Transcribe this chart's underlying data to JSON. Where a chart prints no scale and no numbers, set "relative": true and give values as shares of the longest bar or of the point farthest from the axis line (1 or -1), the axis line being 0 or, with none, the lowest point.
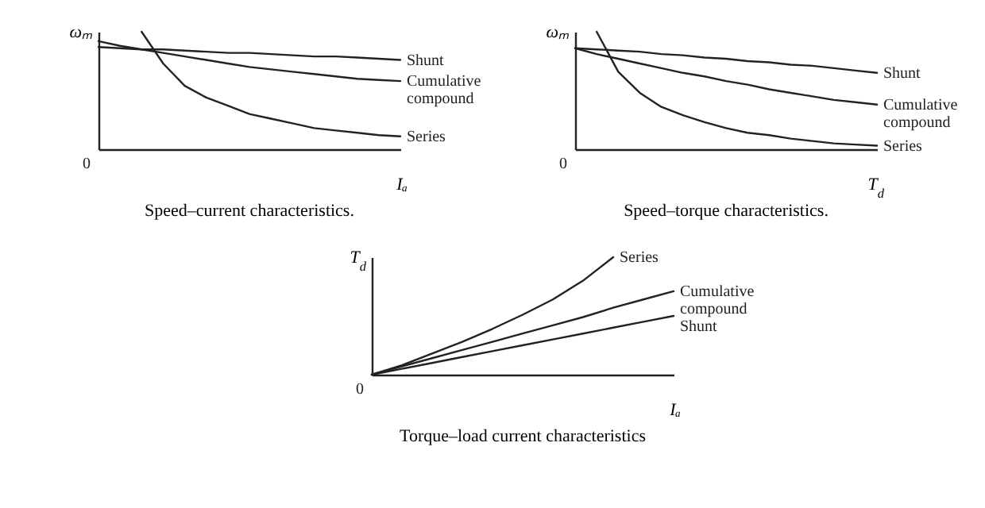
{
  "chart_data": [
    {
      "type": "line",
      "title": "Speed–current characteristics.",
      "xlabel": "Iₐ",
      "ylabel": "ωₘ",
      "relative": true,
      "tick_labels": false,
      "annotations": [
        "0"
      ],
      "categories": [
        null,
        null,
        null,
        null,
        null,
        null,
        null,
        null,
        null,
        null,
        null,
        null,
        null,
        null,
        null
      ],
      "series": [
        {
          "name": "Shunt",
          "color": "#222222",
          "values": [
            0.87,
            0.86,
            0.85,
            0.85,
            0.84,
            0.83,
            0.82,
            0.82,
            0.81,
            0.8,
            0.79,
            0.79,
            0.78,
            0.77,
            0.76
          ]
        },
        {
          "name": "Cumulative compound",
          "color": "#222222",
          "values": [
            0.92,
            0.88,
            0.85,
            0.82,
            0.79,
            0.76,
            0.73,
            0.7,
            0.68,
            0.66,
            0.64,
            0.62,
            0.6,
            0.59,
            0.58
          ]
        },
        {
          "name": "Series",
          "color": "#222222",
          "values": [
            null,
            null,
            1.0,
            0.73,
            0.54,
            0.44,
            0.37,
            0.3,
            0.26,
            0.22,
            0.18,
            0.16,
            0.14,
            0.12,
            0.11
          ]
        }
      ]
    },
    {
      "type": "line",
      "title": "Speed–torque characteristics.",
      "xlabel": "T$_{d}$",
      "ylabel": "ωₘ",
      "relative": true,
      "tick_labels": false,
      "annotations": [
        "0"
      ],
      "categories": [
        null,
        null,
        null,
        null,
        null,
        null,
        null,
        null,
        null,
        null,
        null,
        null,
        null,
        null,
        null
      ],
      "series": [
        {
          "name": "Shunt",
          "color": "#222222",
          "values": [
            0.86,
            0.85,
            0.84,
            0.83,
            0.81,
            0.8,
            0.78,
            0.77,
            0.75,
            0.74,
            0.72,
            0.71,
            0.69,
            0.67,
            0.65
          ]
        },
        {
          "name": "Cumulative compound",
          "color": "#222222",
          "values": [
            0.86,
            0.81,
            0.77,
            0.73,
            0.69,
            0.65,
            0.62,
            0.58,
            0.55,
            0.51,
            0.48,
            0.45,
            0.42,
            0.4,
            0.38
          ]
        },
        {
          "name": "Series",
          "color": "#222222",
          "values": [
            null,
            1.0,
            0.66,
            0.48,
            0.36,
            0.29,
            0.23,
            0.18,
            0.14,
            0.12,
            0.09,
            0.07,
            0.05,
            0.04,
            0.03
          ]
        }
      ]
    },
    {
      "type": "line",
      "title": "Torque–load current characteristics",
      "xlabel": "Iₐ",
      "ylabel": "T$_{d}$",
      "relative": true,
      "tick_labels": false,
      "annotations": [
        "0"
      ],
      "categories": [
        null,
        null,
        null,
        null,
        null,
        null,
        null,
        null,
        null,
        null,
        null
      ],
      "series": [
        {
          "name": "Series",
          "color": "#222222",
          "values": [
            0,
            0.08,
            0.18,
            0.28,
            0.39,
            0.51,
            0.64,
            0.8,
            1.0,
            null,
            null
          ]
        },
        {
          "name": "Cumulative compound",
          "color": "#222222",
          "values": [
            0,
            0.07,
            0.14,
            0.21,
            0.28,
            0.35,
            0.42,
            0.49,
            0.57,
            0.64,
            0.71
          ]
        },
        {
          "name": "Shunt",
          "color": "#222222",
          "values": [
            0,
            0.05,
            0.1,
            0.15,
            0.2,
            0.25,
            0.3,
            0.35,
            0.4,
            0.45,
            0.5
          ]
        }
      ]
    }
  ]
}
